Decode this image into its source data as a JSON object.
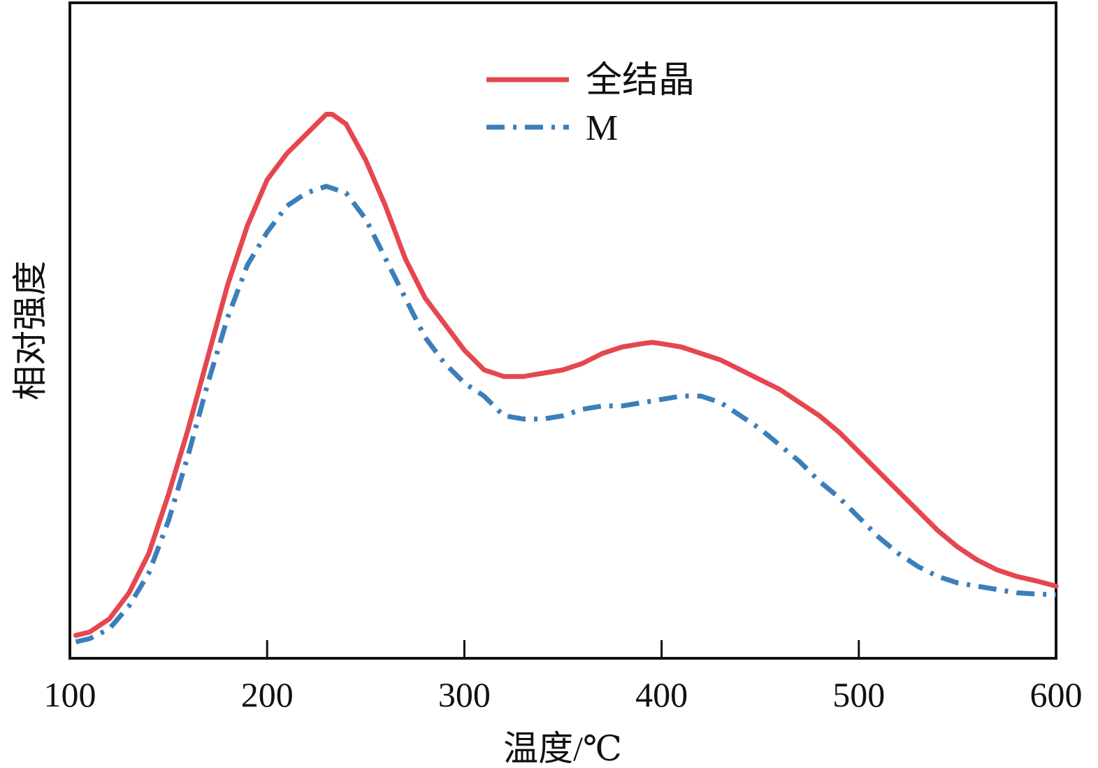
{
  "chart_data": {
    "type": "line",
    "title": "",
    "xlabel": "温度/℃",
    "ylabel": "相对强度",
    "xlim": [
      100,
      600
    ],
    "ylim": [
      0,
      1
    ],
    "x_ticks": [
      "100",
      "200",
      "300",
      "400",
      "500",
      "600"
    ],
    "y_ticks": [],
    "grid": false,
    "legend_position": "top-center",
    "series": [
      {
        "name": "全结晶",
        "color": "#e5474f",
        "line_style": "solid",
        "x": [
          103,
          110,
          120,
          130,
          140,
          150,
          160,
          170,
          180,
          190,
          200,
          210,
          220,
          230,
          233,
          240,
          250,
          260,
          270,
          280,
          290,
          300,
          310,
          320,
          330,
          340,
          350,
          360,
          370,
          380,
          390,
          395,
          400,
          410,
          420,
          430,
          440,
          450,
          460,
          470,
          480,
          490,
          500,
          510,
          520,
          530,
          540,
          550,
          560,
          570,
          580,
          590,
          600
        ],
        "y": [
          0.035,
          0.04,
          0.06,
          0.1,
          0.16,
          0.25,
          0.35,
          0.46,
          0.57,
          0.66,
          0.73,
          0.77,
          0.8,
          0.83,
          0.83,
          0.815,
          0.76,
          0.69,
          0.61,
          0.55,
          0.51,
          0.47,
          0.44,
          0.43,
          0.43,
          0.435,
          0.44,
          0.45,
          0.465,
          0.475,
          0.48,
          0.482,
          0.48,
          0.475,
          0.465,
          0.455,
          0.44,
          0.425,
          0.41,
          0.39,
          0.37,
          0.345,
          0.315,
          0.285,
          0.255,
          0.225,
          0.195,
          0.17,
          0.15,
          0.135,
          0.125,
          0.118,
          0.11
        ]
      },
      {
        "name": "M",
        "color": "#3b7fba",
        "line_style": "dash-dot",
        "x": [
          103,
          110,
          120,
          130,
          140,
          150,
          160,
          170,
          180,
          190,
          200,
          210,
          220,
          230,
          240,
          250,
          260,
          270,
          280,
          290,
          300,
          310,
          320,
          330,
          340,
          350,
          360,
          370,
          380,
          390,
          400,
          410,
          420,
          430,
          440,
          450,
          460,
          470,
          480,
          490,
          500,
          510,
          520,
          530,
          540,
          550,
          560,
          570,
          580,
          590,
          600
        ],
        "y": [
          0.025,
          0.03,
          0.045,
          0.08,
          0.13,
          0.21,
          0.31,
          0.42,
          0.52,
          0.6,
          0.65,
          0.69,
          0.71,
          0.72,
          0.71,
          0.67,
          0.61,
          0.55,
          0.49,
          0.45,
          0.42,
          0.4,
          0.37,
          0.365,
          0.365,
          0.37,
          0.38,
          0.385,
          0.385,
          0.39,
          0.395,
          0.4,
          0.4,
          0.39,
          0.37,
          0.35,
          0.325,
          0.3,
          0.27,
          0.245,
          0.215,
          0.185,
          0.16,
          0.14,
          0.125,
          0.115,
          0.11,
          0.105,
          0.1,
          0.098,
          0.097
        ]
      }
    ]
  }
}
